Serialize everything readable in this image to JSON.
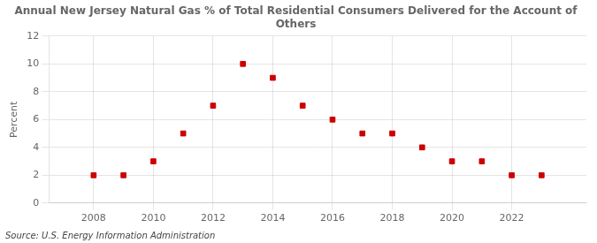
{
  "chart_data": {
    "type": "scatter",
    "title": "Annual New Jersey Natural Gas % of Total Residential Consumers Delivered for the Account of Others",
    "ylabel": "Percent",
    "source": "Source: U.S. Energy Information Administration",
    "x": [
      2008,
      2009,
      2010,
      2011,
      2012,
      2013,
      2014,
      2015,
      2016,
      2017,
      2018,
      2019,
      2020,
      2021,
      2022,
      2023
    ],
    "values": [
      2,
      2,
      3,
      5,
      7,
      10,
      9,
      7,
      6,
      5,
      5,
      4,
      3,
      3,
      2,
      2
    ],
    "color": "#cc0000",
    "marker": "square",
    "xlim": [
      2006.5,
      2024.5
    ],
    "ylim": [
      0,
      12
    ],
    "xticks": [
      2008,
      2010,
      2012,
      2014,
      2016,
      2018,
      2020,
      2022
    ],
    "yticks": [
      0,
      2,
      4,
      6,
      8,
      10,
      12
    ],
    "grid": true
  }
}
